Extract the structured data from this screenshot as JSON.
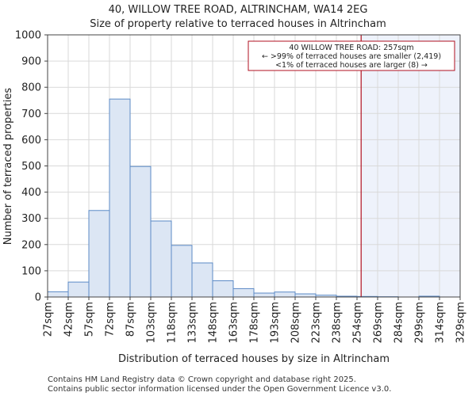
{
  "chart_data": {
    "type": "bar",
    "title": "40, WILLOW TREE ROAD, ALTRINCHAM, WA14 2EG",
    "subtitle": "Size of property relative to terraced houses in Altrincham",
    "xlabel": "Distribution of terraced houses by size in Altrincham",
    "ylabel": "Number of terraced properties",
    "ylim": [
      0,
      1000
    ],
    "yticks": [
      0,
      100,
      200,
      300,
      400,
      500,
      600,
      700,
      800,
      900,
      1000
    ],
    "categories": [
      "27sqm",
      "42sqm",
      "57sqm",
      "72sqm",
      "87sqm",
      "103sqm",
      "118sqm",
      "133sqm",
      "148sqm",
      "163sqm",
      "178sqm",
      "193sqm",
      "208sqm",
      "223sqm",
      "238sqm",
      "254sqm",
      "269sqm",
      "284sqm",
      "299sqm",
      "314sqm",
      "329sqm"
    ],
    "values": [
      20,
      57,
      330,
      755,
      498,
      290,
      197,
      130,
      62,
      32,
      15,
      19,
      12,
      7,
      3,
      2,
      1,
      0,
      3,
      0,
      0
    ],
    "bar_color": "#dce6f4",
    "bar_edge_color": "#5b8ac6",
    "grid": true,
    "marker": {
      "value_sqm": 257,
      "color": "#b01020",
      "shade_color": "#eef2fb"
    },
    "annotation": {
      "lines": [
        "40 WILLOW TREE ROAD: 257sqm",
        "← >99% of terraced houses are smaller (2,419)",
        "<1% of terraced houses are larger (8) →"
      ],
      "border_color": "#b01020"
    }
  },
  "footer": {
    "line1": "Contains HM Land Registry data © Crown copyright and database right 2025.",
    "line2": "Contains public sector information licensed under the Open Government Licence v3.0."
  }
}
